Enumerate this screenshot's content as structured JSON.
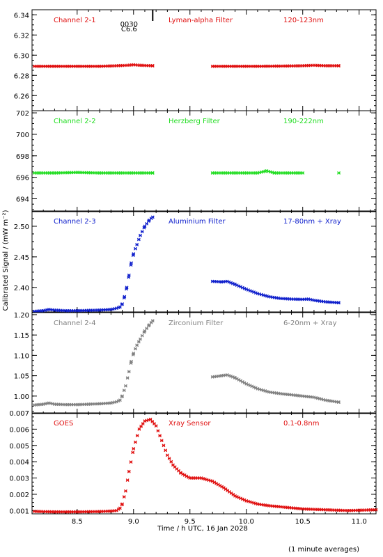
{
  "xaxis": {
    "label": "Time / h UTC, 16 Jan 2028",
    "range": [
      8.1,
      11.15
    ],
    "ticks": [
      8.5,
      9.0,
      9.5,
      10.0,
      10.5,
      11.0
    ],
    "tick_labels": [
      "8.5",
      "9.0",
      "9.5",
      "10.0",
      "10.5",
      "11.0"
    ]
  },
  "yaxis_label": "Calibrated Signal / (mW m⁻²)",
  "footnote": "(1 minute averages)",
  "panels": [
    {
      "channel": "Channel 2-1",
      "filter": "Lyman-alpha Filter",
      "band": "120-123nm",
      "color": "#e01010",
      "ylim": [
        6.245,
        6.345
      ],
      "yticks": [
        6.26,
        6.28,
        6.3,
        6.32,
        6.34
      ],
      "ytick_labels": [
        "6.26",
        "6.28",
        "6.30",
        "6.32",
        "6.34"
      ],
      "annotation": {
        "line1": "0030",
        "line2": "C6.6",
        "x": 8.96
      },
      "marker_x": 9.17
    },
    {
      "channel": "Channel 2-2",
      "filter": "Herzberg Filter",
      "band": "190-222nm",
      "color": "#22dd22",
      "ylim": [
        692.8,
        702.2
      ],
      "yticks": [
        694,
        696,
        698,
        700,
        702
      ],
      "ytick_labels": [
        "694",
        "696",
        "698",
        "700",
        "702"
      ]
    },
    {
      "channel": "Channel 2-3",
      "filter": "Aluminium Filter",
      "band": "17-80nm + Xray",
      "color": "#1020cc",
      "ylim": [
        2.36,
        2.525
      ],
      "yticks": [
        2.4,
        2.45,
        2.5
      ],
      "ytick_labels": [
        "2.40",
        "2.45",
        "2.50"
      ]
    },
    {
      "channel": "Channel 2-4",
      "filter": "Zirconium Filter",
      "band": "6-20nm + Xray",
      "color": "#808080",
      "ylim": [
        0.957,
        1.205
      ],
      "yticks": [
        1.0,
        1.05,
        1.1,
        1.15,
        1.2
      ],
      "ytick_labels": [
        "1.00",
        "1.05",
        "1.10",
        "1.15",
        "1.20"
      ]
    },
    {
      "channel": "GOES",
      "filter": "Xray Sensor",
      "band": "0.1-0.8nm",
      "color": "#e01010",
      "ylim": [
        0.0008,
        0.007
      ],
      "yticks": [
        0.001,
        0.002,
        0.003,
        0.004,
        0.005,
        0.006,
        0.007
      ],
      "ytick_labels": [
        "0.001",
        "0.002",
        "0.003",
        "0.004",
        "0.005",
        "0.006",
        "0.007"
      ]
    }
  ],
  "chart_data": [
    {
      "type": "scatter",
      "series": [
        {
          "values": [
            [
              8.12,
              6.289
            ],
            [
              8.3,
              6.289
            ],
            [
              8.5,
              6.289
            ],
            [
              8.7,
              6.289
            ],
            [
              8.85,
              6.2895
            ],
            [
              8.95,
              6.29
            ],
            [
              9.0,
              6.2905
            ],
            [
              9.05,
              6.29
            ],
            [
              9.17,
              6.2895
            ],
            [
              9.7,
              6.289
            ],
            [
              9.9,
              6.289
            ],
            [
              10.1,
              6.289
            ],
            [
              10.3,
              6.2892
            ],
            [
              10.5,
              6.2895
            ],
            [
              10.6,
              6.29
            ],
            [
              10.7,
              6.2895
            ],
            [
              10.82,
              6.2895
            ]
          ]
        }
      ],
      "gaps": [
        [
          9.17,
          9.7
        ]
      ]
    },
    {
      "type": "scatter",
      "series": [
        {
          "values": [
            [
              8.12,
              696.4
            ],
            [
              8.3,
              696.4
            ],
            [
              8.5,
              696.45
            ],
            [
              8.7,
              696.4
            ],
            [
              8.9,
              696.4
            ],
            [
              9.17,
              696.4
            ],
            [
              9.7,
              696.4
            ],
            [
              9.9,
              696.4
            ],
            [
              10.1,
              696.4
            ],
            [
              10.18,
              696.6
            ],
            [
              10.25,
              696.4
            ],
            [
              10.5,
              696.4
            ],
            [
              10.82,
              696.4
            ]
          ]
        }
      ],
      "gaps": [
        [
          9.17,
          9.7
        ]
      ]
    },
    {
      "type": "scatter",
      "series": [
        {
          "values": [
            [
              8.12,
              2.361
            ],
            [
              8.2,
              2.362
            ],
            [
              8.25,
              2.364
            ],
            [
              8.3,
              2.363
            ],
            [
              8.4,
              2.362
            ],
            [
              8.5,
              2.362
            ],
            [
              8.6,
              2.3625
            ],
            [
              8.7,
              2.363
            ],
            [
              8.8,
              2.364
            ],
            [
              8.85,
              2.366
            ],
            [
              8.88,
              2.368
            ],
            [
              8.9,
              2.373
            ],
            [
              8.92,
              2.385
            ],
            [
              8.94,
              2.4
            ],
            [
              8.96,
              2.42
            ],
            [
              8.98,
              2.44
            ],
            [
              9.0,
              2.455
            ],
            [
              9.03,
              2.47
            ],
            [
              9.06,
              2.485
            ],
            [
              9.1,
              2.5
            ],
            [
              9.14,
              2.51
            ],
            [
              9.17,
              2.515
            ],
            [
              9.7,
              2.41
            ],
            [
              9.78,
              2.409
            ],
            [
              9.83,
              2.41
            ],
            [
              9.9,
              2.405
            ],
            [
              10.0,
              2.397
            ],
            [
              10.1,
              2.39
            ],
            [
              10.2,
              2.385
            ],
            [
              10.3,
              2.382
            ],
            [
              10.4,
              2.381
            ],
            [
              10.5,
              2.3805
            ],
            [
              10.55,
              2.381
            ],
            [
              10.6,
              2.379
            ],
            [
              10.7,
              2.3765
            ],
            [
              10.82,
              2.375
            ]
          ]
        }
      ],
      "gaps": [
        [
          9.17,
          9.7
        ]
      ]
    },
    {
      "type": "scatter",
      "series": [
        {
          "values": [
            [
              8.12,
              0.978
            ],
            [
              8.2,
              0.98
            ],
            [
              8.25,
              0.983
            ],
            [
              8.3,
              0.98
            ],
            [
              8.4,
              0.979
            ],
            [
              8.5,
              0.979
            ],
            [
              8.6,
              0.98
            ],
            [
              8.7,
              0.981
            ],
            [
              8.8,
              0.983
            ],
            [
              8.85,
              0.986
            ],
            [
              8.88,
              0.99
            ],
            [
              8.9,
              1.0
            ],
            [
              8.93,
              1.025
            ],
            [
              8.96,
              1.06
            ],
            [
              8.98,
              1.085
            ],
            [
              9.0,
              1.105
            ],
            [
              9.03,
              1.125
            ],
            [
              9.06,
              1.14
            ],
            [
              9.1,
              1.16
            ],
            [
              9.14,
              1.175
            ],
            [
              9.17,
              1.185
            ],
            [
              9.7,
              1.047
            ],
            [
              9.78,
              1.05
            ],
            [
              9.83,
              1.052
            ],
            [
              9.9,
              1.045
            ],
            [
              10.0,
              1.03
            ],
            [
              10.1,
              1.018
            ],
            [
              10.2,
              1.01
            ],
            [
              10.3,
              1.006
            ],
            [
              10.4,
              1.003
            ],
            [
              10.5,
              1.0
            ],
            [
              10.6,
              0.997
            ],
            [
              10.7,
              0.99
            ],
            [
              10.82,
              0.985
            ]
          ]
        }
      ],
      "gaps": [
        [
          9.17,
          9.7
        ]
      ]
    },
    {
      "type": "scatter",
      "series": [
        {
          "values": [
            [
              8.12,
              0.00095
            ],
            [
              8.3,
              0.00092
            ],
            [
              8.5,
              0.00092
            ],
            [
              8.7,
              0.00094
            ],
            [
              8.8,
              0.00097
            ],
            [
              8.85,
              0.001
            ],
            [
              8.88,
              0.00115
            ],
            [
              8.9,
              0.0014
            ],
            [
              8.93,
              0.0022
            ],
            [
              8.96,
              0.0034
            ],
            [
              9.0,
              0.0048
            ],
            [
              9.05,
              0.006
            ],
            [
              9.1,
              0.0065
            ],
            [
              9.15,
              0.0066
            ],
            [
              9.2,
              0.0062
            ],
            [
              9.25,
              0.0053
            ],
            [
              9.3,
              0.0044
            ],
            [
              9.35,
              0.0038
            ],
            [
              9.42,
              0.0033
            ],
            [
              9.5,
              0.003
            ],
            [
              9.6,
              0.003
            ],
            [
              9.7,
              0.0028
            ],
            [
              9.8,
              0.0024
            ],
            [
              9.9,
              0.0019
            ],
            [
              10.0,
              0.0016
            ],
            [
              10.1,
              0.0014
            ],
            [
              10.2,
              0.0013
            ],
            [
              10.35,
              0.0012
            ],
            [
              10.5,
              0.0011
            ],
            [
              10.7,
              0.00105
            ],
            [
              10.9,
              0.001
            ],
            [
              11.15,
              0.00105
            ]
          ]
        }
      ],
      "gaps": []
    }
  ]
}
